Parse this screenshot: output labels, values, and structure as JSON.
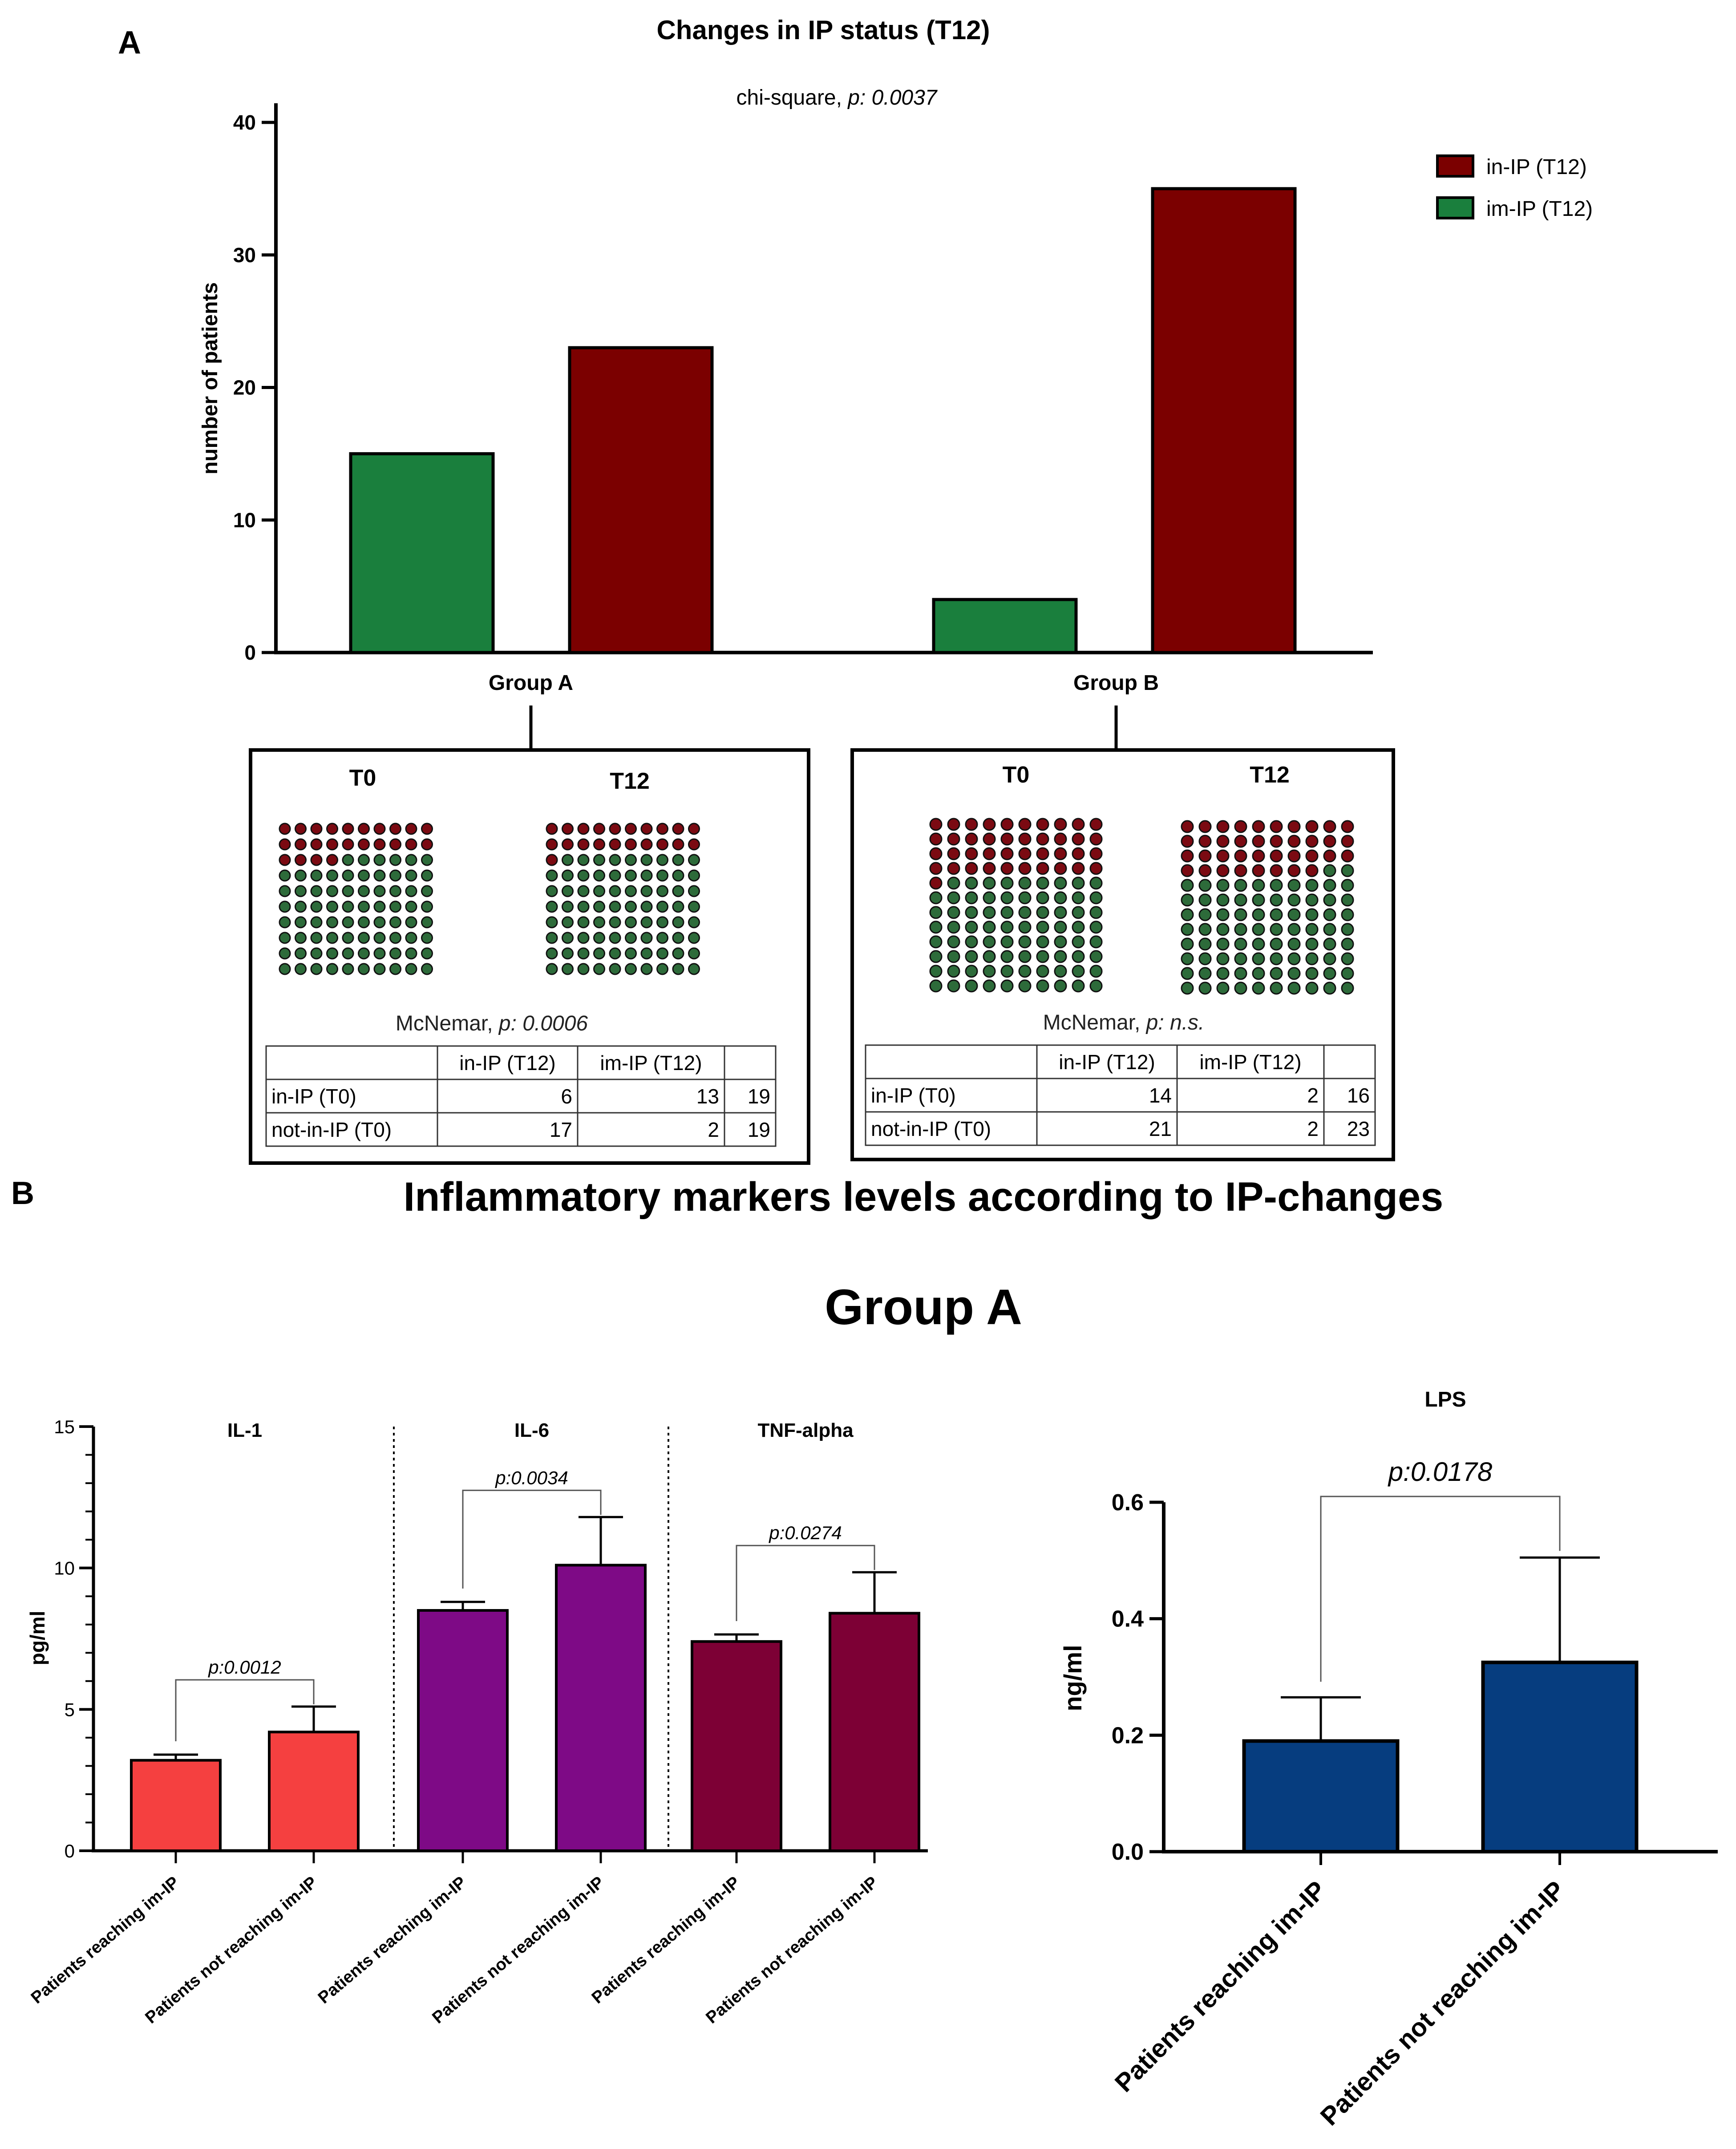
{
  "panelA": {
    "label": "A",
    "chart_data": {
      "type": "bar",
      "title": "Changes in IP status (T12)",
      "subtitle_prefix": "chi-square, ",
      "subtitle_p": "p: 0.0037",
      "ylabel": "number of patients",
      "xlabel": "",
      "ylim": [
        0,
        40
      ],
      "yticks": [
        0,
        10,
        20,
        30,
        40
      ],
      "categories": [
        "Group A",
        "Group B"
      ],
      "series": [
        {
          "name": "im-IP (T12)",
          "color": "#1a7f3d",
          "values": [
            15,
            4
          ]
        },
        {
          "name": "in-IP (T12)",
          "color": "#7b0000",
          "values": [
            23,
            35
          ]
        }
      ],
      "legend": [
        "in-IP (T12)",
        "im-IP (T12)"
      ],
      "legend_position": "top-right"
    },
    "boxes": [
      {
        "group": "Group A",
        "t0_label": "T0",
        "t12_label": "T12",
        "dots_total": 100,
        "t0_red": 24,
        "t12_red": 21,
        "test_prefix": "McNemar, ",
        "test_p": "p: 0.0006",
        "table": {
          "header": [
            "",
            "in-IP (T12)",
            "im-IP (T12)",
            ""
          ],
          "rows": [
            [
              "in-IP (T0)",
              "6",
              "13",
              "19"
            ],
            [
              "not-in-IP (T0)",
              "17",
              "2",
              "19"
            ]
          ]
        }
      },
      {
        "group": "Group B",
        "t0_label": "T0",
        "t12_label": "T12",
        "dots_total": 120,
        "t0_red": 41,
        "t12_red": 38,
        "test_prefix": "McNemar, ",
        "test_p": "p: n.s.",
        "table": {
          "header": [
            "",
            "in-IP (T12)",
            "im-IP (T12)",
            ""
          ],
          "rows": [
            [
              "in-IP (T0)",
              "14",
              "2",
              "16"
            ],
            [
              "not-in-IP (T0)",
              "21",
              "2",
              "23"
            ]
          ]
        }
      }
    ],
    "colors": {
      "red_dot": "#7b0a12",
      "green_dot": "#2d6b3a"
    }
  },
  "panelB": {
    "label": "B",
    "title": "Inflammatory markers levels according to IP-changes",
    "subtitle": "Group A",
    "chart_data": [
      {
        "type": "bar",
        "name": "cytokines",
        "ylabel": "pg/ml",
        "ylim": [
          0,
          15
        ],
        "yticks": [
          0,
          5,
          10,
          15
        ],
        "panels": [
          {
            "title": "IL-1",
            "color": "#f54040",
            "categories": [
              "Patients reaching im-IP",
              "Patients not reaching im-IP"
            ],
            "values": [
              3.2,
              4.2
            ],
            "errors": [
              0.2,
              0.9
            ],
            "p": "p:0.0012"
          },
          {
            "title": "IL-6",
            "color": "#7e0a86",
            "categories": [
              "Patients reaching im-IP",
              "Patients not reaching im-IP"
            ],
            "values": [
              8.5,
              10.1
            ],
            "errors": [
              0.3,
              1.7
            ],
            "p": "p:0.0034"
          },
          {
            "title": "TNF-alpha",
            "color": "#7d0035",
            "categories": [
              "Patients reaching im-IP",
              "Patients not reaching im-IP"
            ],
            "values": [
              7.4,
              8.4
            ],
            "errors": [
              0.25,
              1.45
            ],
            "p": "p:0.0274"
          }
        ]
      },
      {
        "type": "bar",
        "name": "LPS",
        "title": "LPS",
        "ylabel": "ng/ml",
        "ylim": [
          0,
          0.6
        ],
        "yticks": [
          "0.0",
          "0.2",
          "0.4",
          "0.6"
        ],
        "color": "#063d7f",
        "categories": [
          "Patients reaching im-IP",
          "Patients not reaching im-IP"
        ],
        "values": [
          0.19,
          0.325
        ],
        "errors": [
          0.075,
          0.18
        ],
        "p": "p:0.0178"
      }
    ]
  }
}
